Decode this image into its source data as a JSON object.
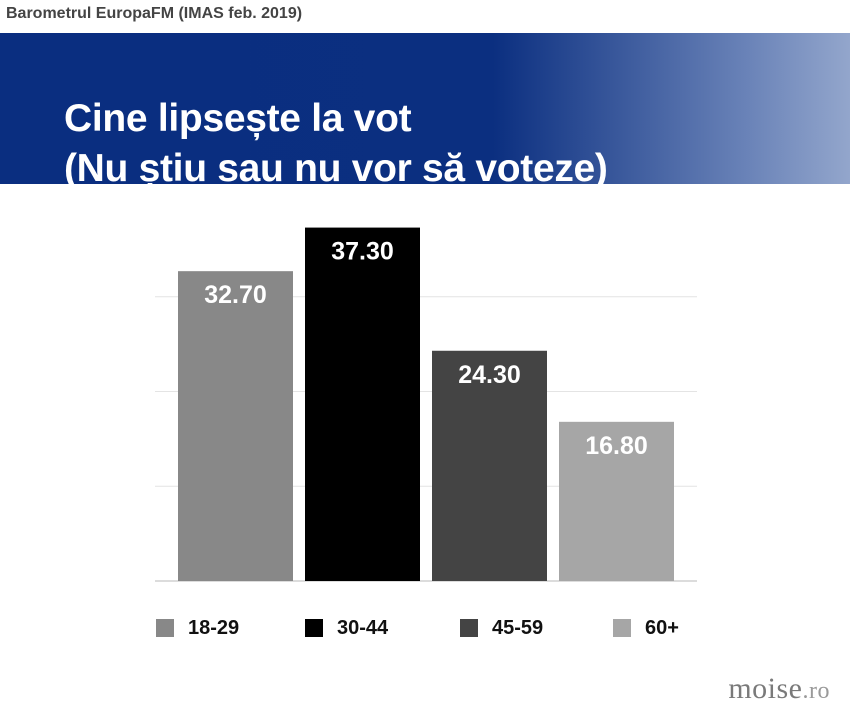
{
  "header": {
    "source": "Barometrul EuropaFM (IMAS feb. 2019)",
    "title_line1": "Cine lipsește la vot",
    "title_line2": "(Nu știu sau nu vor să voteze)"
  },
  "chart_data": {
    "type": "bar",
    "title": "Cine lipsește la vot (Nu știu sau nu vor să voteze)",
    "categories": [
      "18-29",
      "30-44",
      "45-59",
      "60+"
    ],
    "values": [
      32.7,
      37.3,
      24.3,
      16.8
    ],
    "value_labels": [
      "32.70",
      "37.30",
      "24.30",
      "16.80"
    ],
    "colors": [
      "#888888",
      "#000000",
      "#444444",
      "#a6a6a6"
    ],
    "ylim": [
      0,
      40
    ],
    "gridlines": [
      0,
      10,
      20,
      30
    ],
    "grid": true,
    "legend": "bottom",
    "xlabel": "",
    "ylabel": ""
  },
  "watermark": {
    "name": "moise",
    "tld": ".ro"
  }
}
